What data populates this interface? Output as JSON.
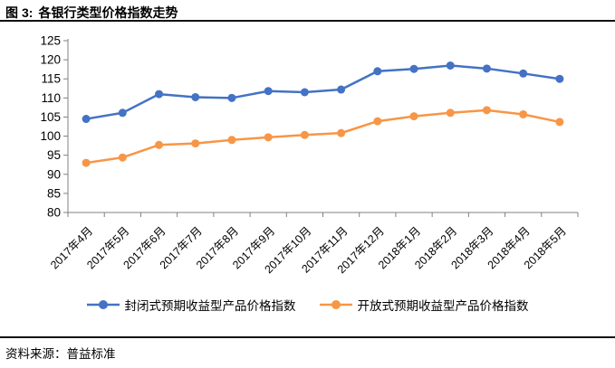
{
  "header": {
    "prefix": "图",
    "number": "3:",
    "title": "各银行类型价格指数走势"
  },
  "footer": {
    "source": "资料来源：普益标准"
  },
  "chart_data": {
    "type": "line",
    "title": "各银行类型价格指数走势",
    "categories": [
      "2017年4月",
      "2017年5月",
      "2017年6月",
      "2017年7月",
      "2017年8月",
      "2017年9月",
      "2017年10月",
      "2017年11月",
      "2017年12月",
      "2018年1月",
      "2018年2月",
      "2018年3月",
      "2018年4月",
      "2018年5月"
    ],
    "series": [
      {
        "name": "封闭式预期收益型产品价格指数",
        "color": "#4472C4",
        "values": [
          104.5,
          106.1,
          111.0,
          110.2,
          110.0,
          111.8,
          111.5,
          112.2,
          117.0,
          117.6,
          118.5,
          117.7,
          116.4,
          115.0
        ]
      },
      {
        "name": "开放式预期收益型产品价格指数",
        "color": "#F79646",
        "values": [
          93.0,
          94.4,
          97.7,
          98.1,
          99.0,
          99.7,
          100.3,
          100.8,
          103.9,
          105.2,
          106.1,
          106.8,
          105.7,
          103.7
        ]
      }
    ],
    "ylim": [
      80,
      125
    ],
    "ytick_step": 5,
    "yticks": [
      80,
      85,
      90,
      95,
      100,
      105,
      110,
      115,
      120,
      125
    ],
    "xlabel_rotation": -45,
    "grid": false,
    "legend_position": "bottom",
    "axis_color": "#808080",
    "text_color": "#000000"
  }
}
